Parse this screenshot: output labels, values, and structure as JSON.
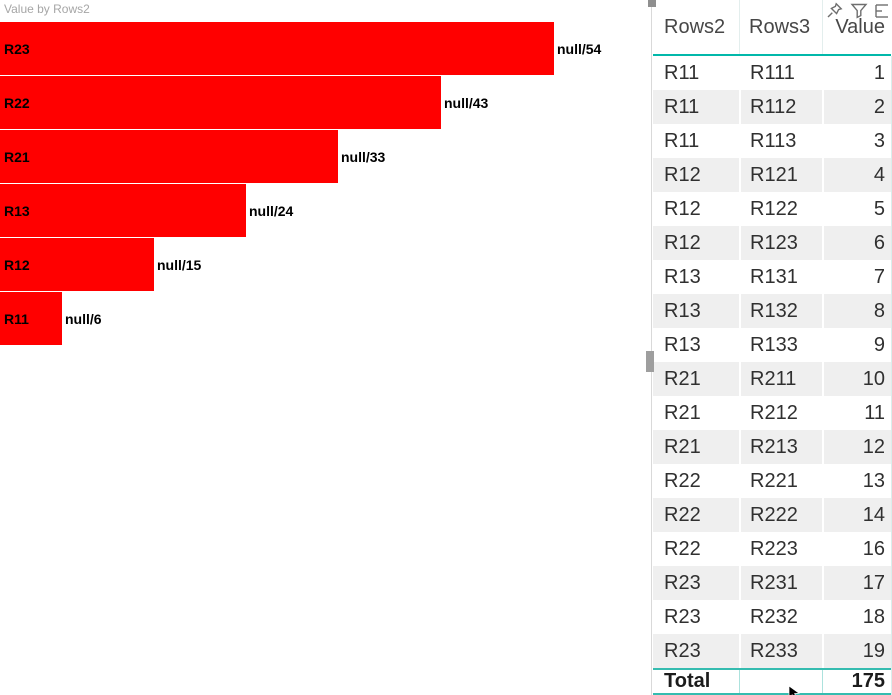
{
  "chart_data": {
    "type": "bar",
    "orientation": "horizontal",
    "title": "Value by Rows2",
    "categories": [
      "R23",
      "R22",
      "R21",
      "R13",
      "R12",
      "R11"
    ],
    "values": [
      54,
      43,
      33,
      24,
      15,
      6
    ],
    "data_labels": [
      "null/54",
      "null/43",
      "null/33",
      "null/24",
      "null/15",
      "null/6"
    ],
    "bar_color": "#ff0000",
    "label_position": "category inside bar left, data label outside bar end",
    "axis": "hidden",
    "xlim": [
      0,
      63
    ]
  },
  "table": {
    "columns": [
      "Rows2",
      "Rows3",
      "Value"
    ],
    "rows": [
      [
        "R11",
        "R111",
        "1"
      ],
      [
        "R11",
        "R112",
        "2"
      ],
      [
        "R11",
        "R113",
        "3"
      ],
      [
        "R12",
        "R121",
        "4"
      ],
      [
        "R12",
        "R122",
        "5"
      ],
      [
        "R12",
        "R123",
        "6"
      ],
      [
        "R13",
        "R131",
        "7"
      ],
      [
        "R13",
        "R132",
        "8"
      ],
      [
        "R13",
        "R133",
        "9"
      ],
      [
        "R21",
        "R211",
        "10"
      ],
      [
        "R21",
        "R212",
        "11"
      ],
      [
        "R21",
        "R213",
        "12"
      ],
      [
        "R22",
        "R221",
        "13"
      ],
      [
        "R22",
        "R222",
        "14"
      ],
      [
        "R22",
        "R223",
        "16"
      ],
      [
        "R23",
        "R231",
        "17"
      ],
      [
        "R23",
        "R232",
        "18"
      ],
      [
        "R23",
        "R233",
        "19"
      ]
    ],
    "total_label": "Total",
    "total_value": "175"
  },
  "visual_header_icons": [
    {
      "name": "pin-icon"
    },
    {
      "name": "filter-icon"
    },
    {
      "name": "focus-mode-icon"
    }
  ],
  "colors": {
    "accent_teal": "#01b8aa",
    "bar_red": "#ff0000",
    "alt_row": "#efefef",
    "title_gray": "#a6a6a6",
    "icon_gray": "#6e6e6e"
  }
}
